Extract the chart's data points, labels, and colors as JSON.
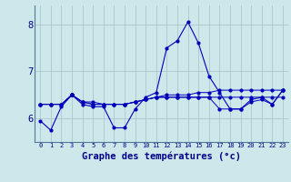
{
  "title": "Graphe des températures (°c)",
  "background_color": "#cce8ea",
  "grid_color": "#aac8cc",
  "line_color": "#0000bb",
  "xlim": [
    -0.5,
    23.5
  ],
  "ylim": [
    5.5,
    8.4
  ],
  "yticks": [
    6,
    7,
    8
  ],
  "x_labels": [
    "0",
    "1",
    "2",
    "3",
    "4",
    "5",
    "6",
    "7",
    "8",
    "9",
    "10",
    "11",
    "12",
    "13",
    "14",
    "15",
    "16",
    "17",
    "18",
    "19",
    "20",
    "21",
    "22",
    "23"
  ],
  "series0": [
    5.95,
    5.75,
    6.25,
    6.5,
    6.3,
    6.25,
    6.25,
    5.8,
    5.8,
    6.2,
    6.45,
    6.55,
    7.5,
    7.65,
    8.05,
    7.6,
    6.9,
    6.55,
    6.2,
    6.2,
    6.4,
    6.45,
    6.3,
    6.6
  ],
  "series1": [
    6.3,
    6.3,
    6.3,
    6.5,
    6.35,
    6.35,
    6.3,
    6.3,
    6.3,
    6.35,
    6.4,
    6.45,
    6.5,
    6.5,
    6.5,
    6.55,
    6.55,
    6.6,
    6.6,
    6.6,
    6.6,
    6.6,
    6.6,
    6.6
  ],
  "series2": [
    6.3,
    6.3,
    6.3,
    6.5,
    6.35,
    6.3,
    6.3,
    6.3,
    6.3,
    6.35,
    6.4,
    6.45,
    6.45,
    6.45,
    6.45,
    6.45,
    6.45,
    6.45,
    6.45,
    6.45,
    6.45,
    6.45,
    6.45,
    6.45
  ],
  "series3": [
    6.3,
    6.3,
    6.3,
    6.5,
    6.35,
    6.3,
    6.3,
    6.3,
    6.3,
    6.35,
    6.4,
    6.45,
    6.45,
    6.45,
    6.45,
    6.45,
    6.45,
    6.2,
    6.2,
    6.2,
    6.35,
    6.4,
    6.3,
    6.6
  ]
}
